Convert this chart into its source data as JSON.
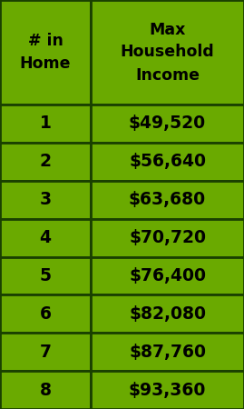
{
  "col1_header": "# in\nHome",
  "col2_header": "Max\nHousehold\nIncome",
  "rows": [
    [
      "1",
      "$49,520"
    ],
    [
      "2",
      "$56,640"
    ],
    [
      "3",
      "$63,680"
    ],
    [
      "4",
      "$70,720"
    ],
    [
      "5",
      "$76,400"
    ],
    [
      "6",
      "$82,080"
    ],
    [
      "7",
      "$87,760"
    ],
    [
      "8",
      "$93,360"
    ]
  ],
  "bg_color": "#6aaa00",
  "cell_color": "#6aaa00",
  "border_color": "#1a4000",
  "text_color": "#000000",
  "header_fontsize": 12.5,
  "cell_fontsize": 13.5,
  "fig_bg_color": "#6aaa00",
  "fig_width": 2.69,
  "fig_height": 4.5,
  "dpi": 100
}
